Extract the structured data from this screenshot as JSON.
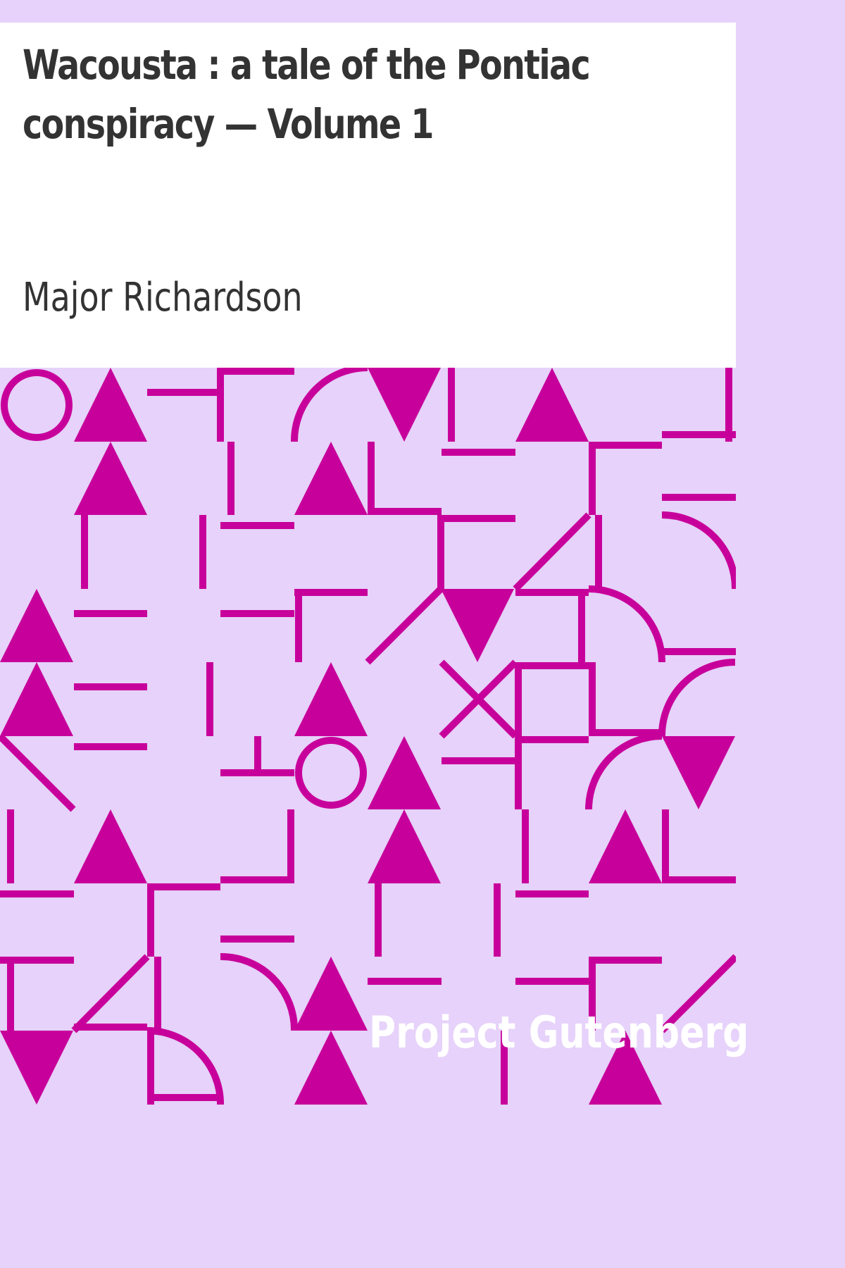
{
  "cover": {
    "title": "Wacousta : a tale of the Pontiac conspiracy — Volume 1",
    "author": "Major Richardson",
    "publisher_mark": "Project Gutenberg"
  },
  "colors": {
    "background": "#e6d2fa",
    "panel": "#ffffff",
    "text": "#333333",
    "pattern": "#c8009b",
    "publisher_text": "#ffffff"
  }
}
